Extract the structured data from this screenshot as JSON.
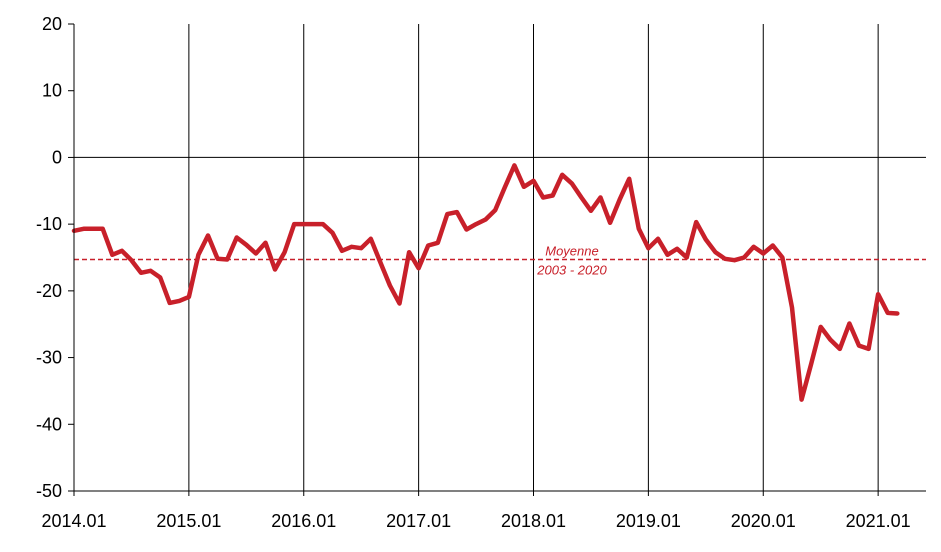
{
  "chart_data": {
    "type": "line",
    "title": "",
    "xlabel": "",
    "ylabel": "",
    "ylim": [
      -50,
      20
    ],
    "yticks": [
      20,
      10,
      0,
      -10,
      -20,
      -30,
      -40,
      -50
    ],
    "xlim": [
      0,
      89
    ],
    "xticks": [
      {
        "label": "2014.01",
        "x": 0
      },
      {
        "label": "2015.01",
        "x": 12
      },
      {
        "label": "2016.01",
        "x": 24
      },
      {
        "label": "2017.01",
        "x": 36
      },
      {
        "label": "2018.01",
        "x": 48
      },
      {
        "label": "2019.01",
        "x": 60
      },
      {
        "label": "2020.01",
        "x": 72
      },
      {
        "label": "2021.01",
        "x": 84
      }
    ],
    "vertical_gridlines_at": [
      12,
      24,
      36,
      48,
      60,
      72,
      84
    ],
    "zero_line": true,
    "series": [
      {
        "color": "#c8202a",
        "values": [
          -11,
          -10.7,
          -10.7,
          -10.7,
          -14.6,
          -14,
          -15.4,
          -17.3,
          -17,
          -18,
          -21.8,
          -21.5,
          -20.9,
          -14.6,
          -11.7,
          -15.2,
          -15.3,
          -12,
          -13.1,
          -14.4,
          -12.8,
          -16.8,
          -14.2,
          -10,
          -10,
          -10,
          -10,
          -11.3,
          -14,
          -13.4,
          -13.6,
          -12.2,
          -15.7,
          -19.2,
          -21.9,
          -14.2,
          -16.6,
          -13.2,
          -12.8,
          -8.5,
          -8.2,
          -10.8,
          -10,
          -9.3,
          -7.9,
          -4.5,
          -1.2,
          -4.4,
          -3.5,
          -6,
          -5.7,
          -2.6,
          -3.9,
          -6,
          -8,
          -6,
          -9.8,
          -6.3,
          -3.2,
          -10.7,
          -13.6,
          -12.2,
          -14.6,
          -13.7,
          -15,
          -9.7,
          -12.3,
          -14.2,
          -15.2,
          -15.4,
          -15,
          -13.4,
          -14.4,
          -13.2,
          -15,
          -22.5,
          -36.3,
          -31,
          -25.4,
          -27.3,
          -28.7,
          -24.9,
          -28.2,
          -28.7,
          -20.5,
          -23.3,
          -23.4
        ]
      }
    ],
    "reference_line": {
      "value": -15.3,
      "color": "#c8202a",
      "label_line1": "Moyenne",
      "label_line2": "2003 - 2020"
    }
  }
}
